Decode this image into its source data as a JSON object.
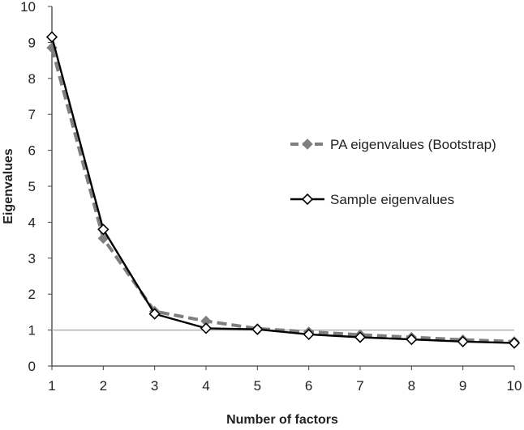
{
  "chart_data": {
    "type": "line",
    "title": "",
    "xlabel": "Number of factors",
    "ylabel": "Eigenvalues",
    "x": [
      1,
      2,
      3,
      4,
      5,
      6,
      7,
      8,
      9,
      10
    ],
    "xlim": [
      1,
      10
    ],
    "ylim": [
      0,
      10
    ],
    "yticks": [
      0,
      1,
      2,
      3,
      4,
      5,
      6,
      7,
      8,
      9,
      10
    ],
    "reference_line": {
      "y": 1,
      "color": "#a6a6a6"
    },
    "legend_position": "right",
    "series": [
      {
        "name": "PA eigenvalues (Bootstrap)",
        "values": [
          8.85,
          3.55,
          1.52,
          1.25,
          1.04,
          0.95,
          0.87,
          0.8,
          0.73,
          0.68
        ],
        "color": "#7f7f7f",
        "line_style": "dashed",
        "marker": "filled-diamond"
      },
      {
        "name": "Sample eigenvalues",
        "values": [
          9.15,
          3.8,
          1.45,
          1.05,
          1.02,
          0.88,
          0.8,
          0.74,
          0.68,
          0.64
        ],
        "color": "#000000",
        "line_style": "solid",
        "marker": "open-diamond"
      }
    ]
  }
}
